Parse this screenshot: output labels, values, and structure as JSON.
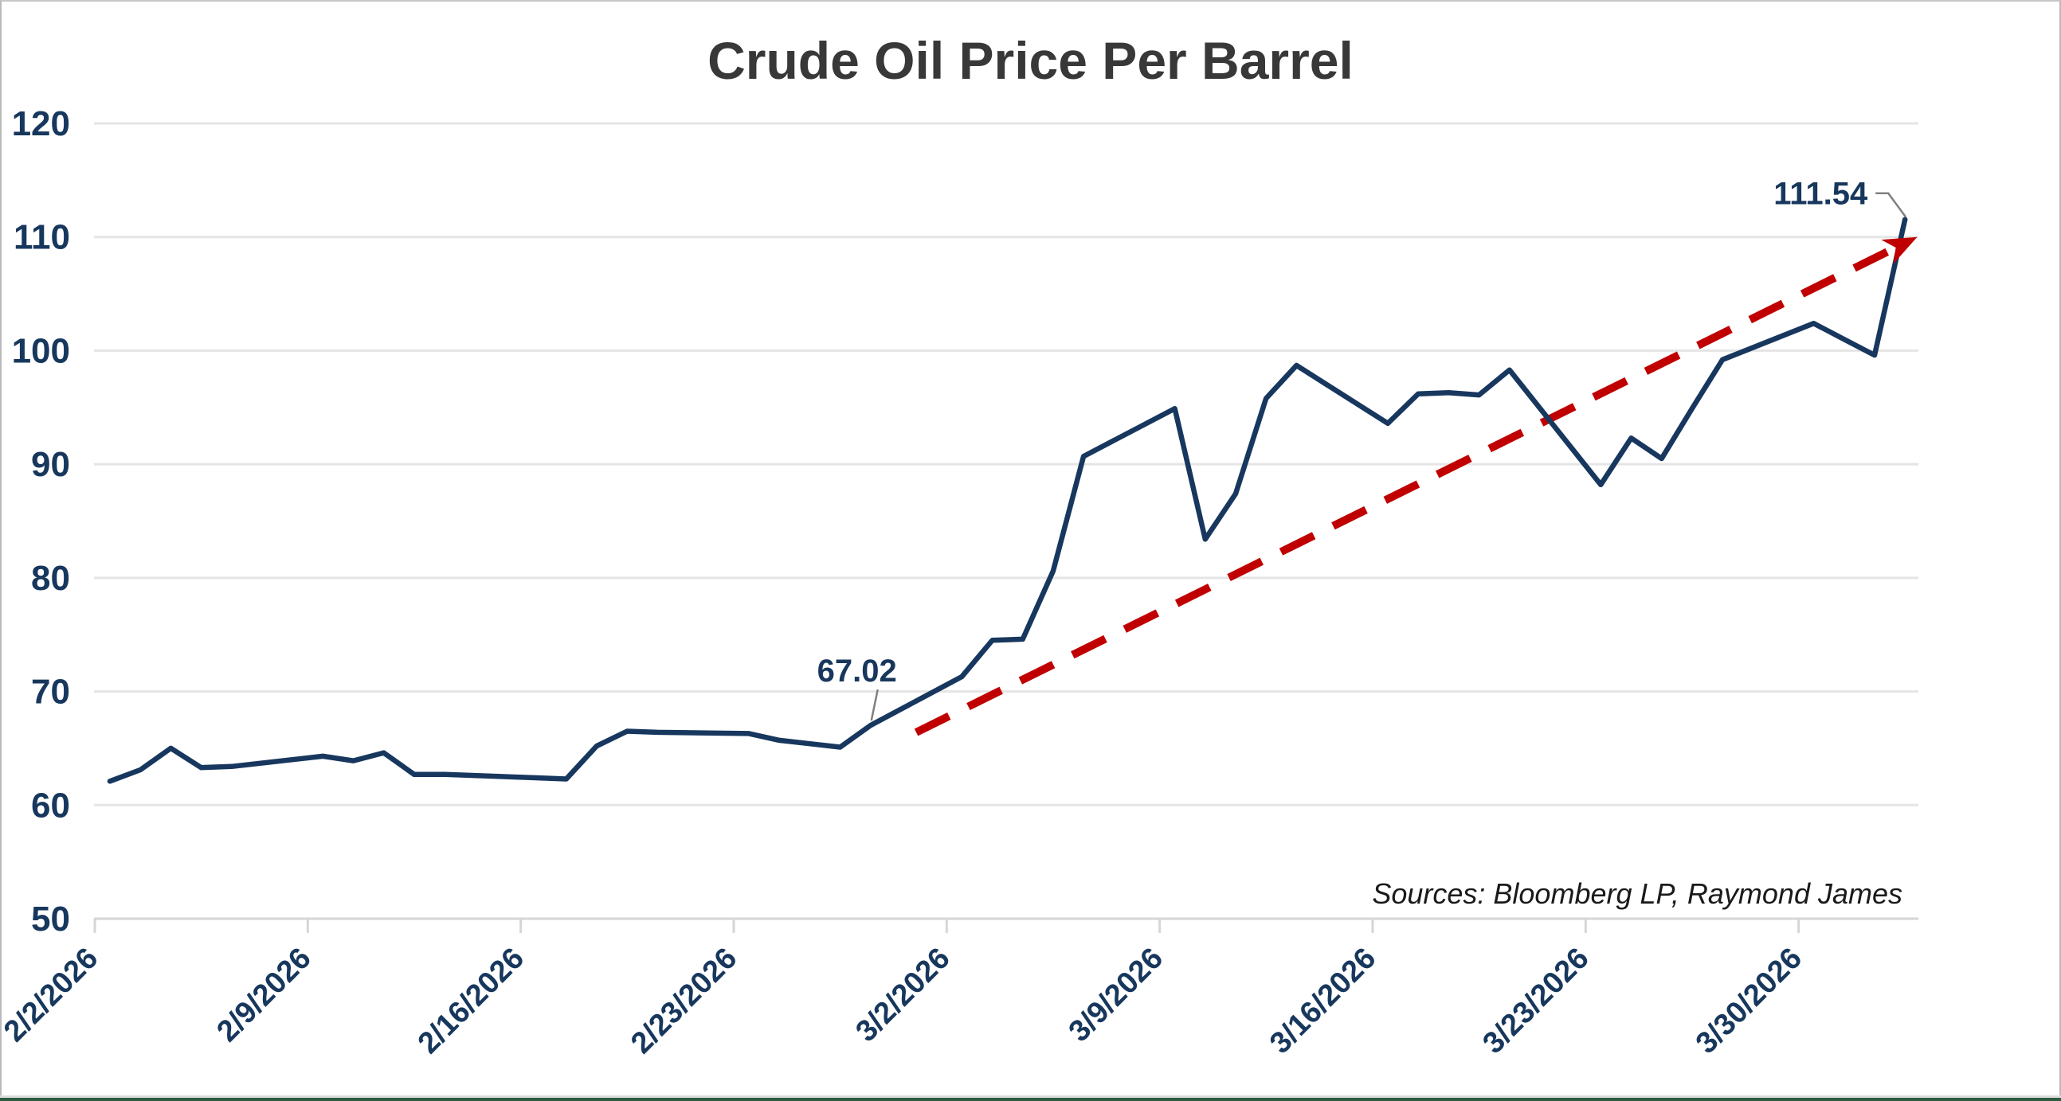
{
  "page": {
    "title": "Crude Oil Price Per Barrel",
    "source_note": "Sources: Bloomberg LP, Raymond James"
  },
  "chart_data": {
    "type": "line",
    "title": "Crude Oil Price Per Barrel",
    "xlabel": "",
    "ylabel": "",
    "grid": true,
    "legend": false,
    "y_axis": {
      "min": 50,
      "max": 120,
      "tick_interval": 10,
      "ticks": [
        120,
        110,
        100,
        90,
        80,
        70,
        60,
        50
      ]
    },
    "x_axis": {
      "start_date": "2/2/2026",
      "end_date": "4/2/2026",
      "tick_labels": [
        "2/2/2026",
        "2/9/2026",
        "2/16/2026",
        "2/23/2026",
        "3/2/2026",
        "3/9/2026",
        "3/16/2026",
        "3/23/2026",
        "3/30/2026"
      ]
    },
    "series": [
      {
        "name": "Crude Oil Price Per Barrel",
        "color": "#17375e",
        "points": [
          [
            "2/2/2026",
            62.1
          ],
          [
            "2/3/2026",
            63.1
          ],
          [
            "2/4/2026",
            65.0
          ],
          [
            "2/5/2026",
            63.3
          ],
          [
            "2/6/2026",
            63.4
          ],
          [
            "2/9/2026",
            64.3
          ],
          [
            "2/10/2026",
            63.9
          ],
          [
            "2/11/2026",
            64.6
          ],
          [
            "2/12/2026",
            62.7
          ],
          [
            "2/13/2026",
            62.7
          ],
          [
            "2/16/2026",
            62.4
          ],
          [
            "2/17/2026",
            62.3
          ],
          [
            "2/18/2026",
            65.2
          ],
          [
            "2/19/2026",
            66.5
          ],
          [
            "2/20/2026",
            66.4
          ],
          [
            "2/23/2026",
            66.3
          ],
          [
            "2/24/2026",
            65.7
          ],
          [
            "2/25/2026",
            65.4
          ],
          [
            "2/26/2026",
            65.1
          ],
          [
            "2/27/2026",
            67.02
          ],
          [
            "3/2/2026",
            71.3
          ],
          [
            "3/3/2026",
            74.5
          ],
          [
            "3/4/2026",
            74.6
          ],
          [
            "3/5/2026",
            80.6
          ],
          [
            "3/6/2026",
            90.7
          ],
          [
            "3/9/2026",
            94.9
          ],
          [
            "3/10/2026",
            83.4
          ],
          [
            "3/11/2026",
            87.4
          ],
          [
            "3/12/2026",
            95.8
          ],
          [
            "3/13/2026",
            98.7
          ],
          [
            "3/16/2026",
            93.6
          ],
          [
            "3/17/2026",
            96.2
          ],
          [
            "3/18/2026",
            96.3
          ],
          [
            "3/19/2026",
            96.1
          ],
          [
            "3/20/2026",
            98.3
          ],
          [
            "3/23/2026",
            88.2
          ],
          [
            "3/24/2026",
            92.3
          ],
          [
            "3/25/2026",
            90.5
          ],
          [
            "3/26/2026",
            94.9
          ],
          [
            "3/27/2026",
            99.2
          ],
          [
            "3/30/2026",
            102.4
          ],
          [
            "3/31/2026",
            101.0
          ],
          [
            "4/1/2026",
            99.6
          ],
          [
            "4/2/2026",
            111.54
          ]
        ]
      }
    ],
    "annotations": [
      {
        "label": "67.02",
        "date": "2/27/2026",
        "value": 67.02
      },
      {
        "label": "111.54",
        "date": "4/2/2026",
        "value": 111.54
      }
    ],
    "trend_arrow": {
      "style": "dashed",
      "color": "#c00000",
      "start_day_offset": 26.5,
      "start_value": 66.4,
      "end_day_offset": 59.4,
      "end_value": 110.0
    }
  },
  "colors": {
    "line": "#17375e",
    "trend": "#c00000",
    "axis_text": "#17375d",
    "title_text": "#383838",
    "gridline": "#e5e5e5",
    "axis_line": "#d6d6d6",
    "leader": "#808080",
    "bottom_bar": "#2e5c41"
  }
}
